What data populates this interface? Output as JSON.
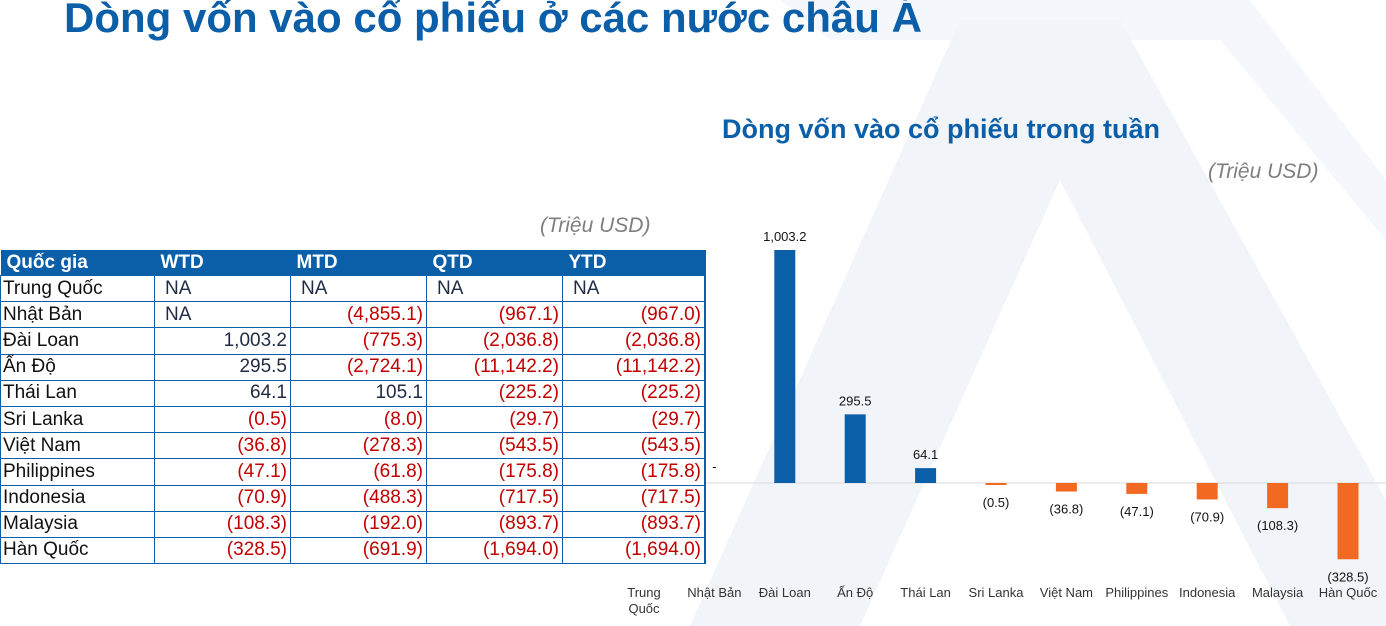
{
  "page_title": "Dòng vốn vào cổ phiếu ở các nước châu Á",
  "table": {
    "unit": "(Triệu USD)",
    "headers": [
      "Quốc gia",
      "WTD",
      "MTD",
      "QTD",
      "YTD"
    ],
    "rows": [
      [
        "Trung Quốc",
        "NA",
        "NA",
        "NA",
        "NA"
      ],
      [
        "Nhật Bản",
        "NA",
        "(4,855.1)",
        "(967.1)",
        "(967.0)"
      ],
      [
        "Đài Loan",
        "1,003.2",
        "(775.3)",
        "(2,036.8)",
        "(2,036.8)"
      ],
      [
        "Ấn Độ",
        "295.5",
        "(2,724.1)",
        "(11,142.2)",
        "(11,142.2)"
      ],
      [
        "Thái Lan",
        "64.1",
        "105.1",
        "(225.2)",
        "(225.2)"
      ],
      [
        "Sri Lanka",
        "(0.5)",
        "(8.0)",
        "(29.7)",
        "(29.7)"
      ],
      [
        "Việt Nam",
        "(36.8)",
        "(278.3)",
        "(543.5)",
        "(543.5)"
      ],
      [
        "Philippines",
        "(47.1)",
        "(61.8)",
        "(175.8)",
        "(175.8)"
      ],
      [
        "Indonesia",
        "(70.9)",
        "(488.3)",
        "(717.5)",
        "(717.5)"
      ],
      [
        "Malaysia",
        "(108.3)",
        "(192.0)",
        "(893.7)",
        "(893.7)"
      ],
      [
        "Hàn Quốc",
        "(328.5)",
        "(691.9)",
        "(1,694.0)",
        "(1,694.0)"
      ]
    ]
  },
  "colors": {
    "brand_blue": "#0b5ea8",
    "positive_bar": "#0b5ea8",
    "negative_bar": "#f26a22",
    "negative_text": "#c00000",
    "unit_text": "#7f7f7f"
  },
  "chart_data": {
    "type": "bar",
    "title": "Dòng vốn vào cổ phiếu trong tuần",
    "unit": "(Triệu USD)",
    "categories": [
      "Trung Quốc",
      "Nhật Bản",
      "Đài Loan",
      "Ấn Độ",
      "Thái Lan",
      "Sri Lanka",
      "Việt Nam",
      "Philippines",
      "Indonesia",
      "Malaysia",
      "Hàn Quốc"
    ],
    "values": [
      null,
      0,
      1003.2,
      295.5,
      64.1,
      -0.5,
      -36.8,
      -47.1,
      -70.9,
      -108.3,
      -328.5
    ],
    "data_labels": [
      "",
      "-",
      "1,003.2",
      "295.5",
      "64.1",
      "(0.5)",
      "(36.8)",
      "(47.1)",
      "(70.9)",
      "(108.3)",
      "(328.5)"
    ],
    "xlabel": "",
    "ylabel": "",
    "ylim": [
      -330,
      1010
    ],
    "grid": false,
    "legend": "none"
  }
}
